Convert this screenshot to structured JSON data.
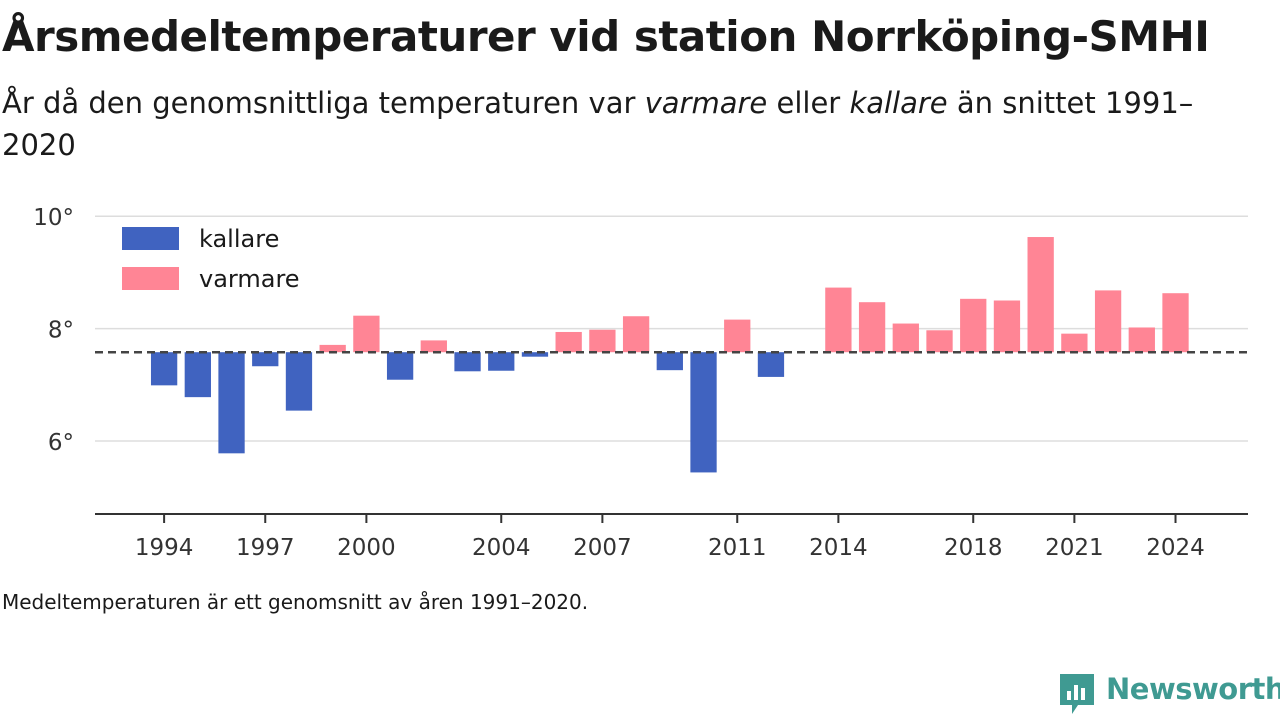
{
  "title": "Årsmedeltemperaturer vid station Norrköping-SMHI",
  "subtitle": {
    "part1": "År då den genomsnittliga temperaturen var ",
    "warm_word": "varmare",
    "part2": " eller ",
    "cold_word": "kallare",
    "part3": " än snittet 1991–2020"
  },
  "footnote": "Medeltemperaturen är ett genomsnitt av åren 1991–2020.",
  "brand": {
    "name": "Newsworthy",
    "icon": "newsworthy-logo-icon"
  },
  "colors": {
    "kallare": "#4063c0",
    "varmare": "#ff8595",
    "grid": "#dddddd",
    "baseline": "#444444",
    "axis": "#333333"
  },
  "chart_data": {
    "type": "bar",
    "baseline": 7.58,
    "baseline_label": "",
    "ylim": [
      4.7,
      10.2
    ],
    "yticks": [
      6,
      8,
      10
    ],
    "ytick_suffix": "°",
    "xlim": [
      1991.95,
      2026.15
    ],
    "xticks": [
      1994,
      1997,
      2000,
      2004,
      2007,
      2011,
      2014,
      2018,
      2021,
      2024
    ],
    "legend": {
      "position": "top-left",
      "entries": [
        {
          "key": "kallare",
          "label": "kallare"
        },
        {
          "key": "varmare",
          "label": "varmare"
        }
      ]
    },
    "x": [
      1994,
      1995,
      1996,
      1997,
      1998,
      1999,
      2000,
      2001,
      2002,
      2003,
      2004,
      2005,
      2006,
      2007,
      2008,
      2009,
      2010,
      2011,
      2012,
      2014,
      2015,
      2016,
      2017,
      2018,
      2019,
      2020,
      2021,
      2022,
      2023,
      2024
    ],
    "values": [
      6.99,
      6.78,
      5.78,
      7.33,
      6.54,
      7.71,
      8.23,
      7.09,
      7.79,
      7.24,
      7.25,
      7.5,
      7.94,
      7.98,
      8.22,
      7.26,
      5.44,
      8.16,
      7.14,
      8.73,
      8.47,
      8.09,
      7.97,
      8.53,
      8.5,
      9.63,
      7.91,
      8.68,
      8.02,
      8.63
    ]
  }
}
